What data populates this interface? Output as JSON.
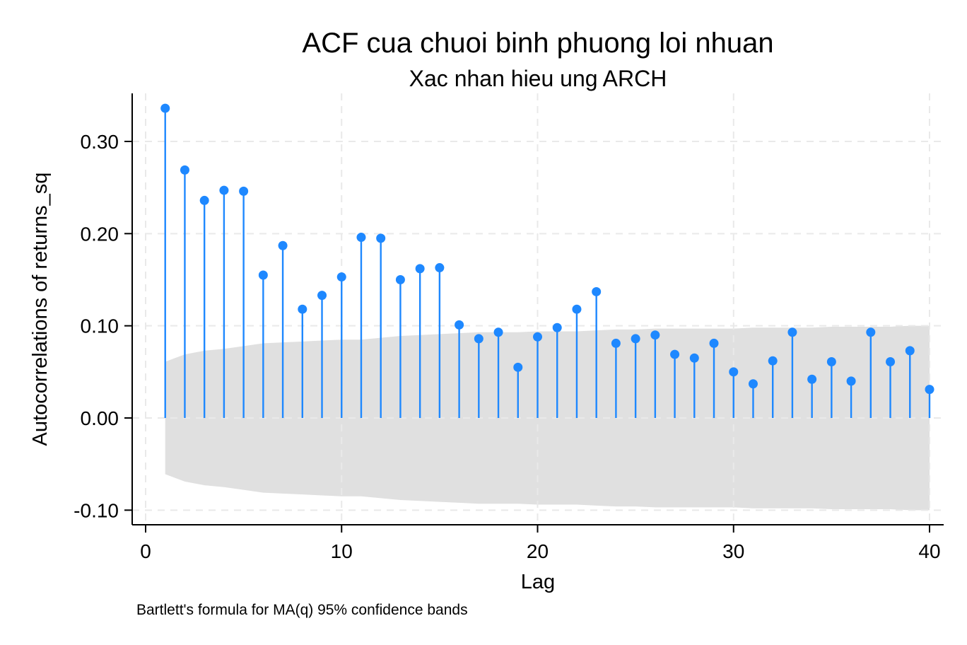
{
  "chart_data": {
    "type": "stem",
    "title": "ACF cua chuoi binh phuong loi nhuan",
    "subtitle": "Xac nhan hieu ung ARCH",
    "xlabel": "Lag",
    "ylabel": "Autocorrelations of returns_sq",
    "note": "Bartlett's formula for MA(q) 95% confidence bands",
    "xlim": [
      0,
      40
    ],
    "ylim": [
      -0.115,
      0.35
    ],
    "x_ticks": [
      0,
      10,
      20,
      30,
      40
    ],
    "x_tick_labels": [
      "0",
      "10",
      "20",
      "30",
      "40"
    ],
    "y_ticks": [
      -0.1,
      0.0,
      0.1,
      0.2,
      0.3
    ],
    "y_tick_labels": [
      "-0.10",
      "0.00",
      "0.10",
      "0.20",
      "0.30"
    ],
    "grid": true,
    "lags": [
      1,
      2,
      3,
      4,
      5,
      6,
      7,
      8,
      9,
      10,
      11,
      12,
      13,
      14,
      15,
      16,
      17,
      18,
      19,
      20,
      21,
      22,
      23,
      24,
      25,
      26,
      27,
      28,
      29,
      30,
      31,
      32,
      33,
      34,
      35,
      36,
      37,
      38,
      39,
      40
    ],
    "acf": [
      0.336,
      0.269,
      0.236,
      0.247,
      0.246,
      0.155,
      0.187,
      0.118,
      0.133,
      0.153,
      0.196,
      0.195,
      0.15,
      0.162,
      0.163,
      0.101,
      0.086,
      0.093,
      0.055,
      0.088,
      0.098,
      0.118,
      0.137,
      0.081,
      0.086,
      0.09,
      0.069,
      0.065,
      0.081,
      0.05,
      0.037,
      0.062,
      0.093,
      0.042,
      0.061,
      0.04,
      0.093,
      0.061,
      0.073,
      0.031
    ],
    "confidence_band": [
      0.061,
      0.069,
      0.073,
      0.075,
      0.078,
      0.081,
      0.082,
      0.083,
      0.084,
      0.085,
      0.085,
      0.087,
      0.089,
      0.09,
      0.091,
      0.092,
      0.093,
      0.093,
      0.093,
      0.094,
      0.094,
      0.094,
      0.095,
      0.096,
      0.096,
      0.097,
      0.097,
      0.097,
      0.097,
      0.097,
      0.098,
      0.098,
      0.098,
      0.098,
      0.099,
      0.099,
      0.099,
      0.099,
      0.1,
      0.1
    ],
    "colors": {
      "stem": "#1e88ff",
      "band": "#e0e0e0",
      "grid": "#e9e9e9"
    }
  }
}
